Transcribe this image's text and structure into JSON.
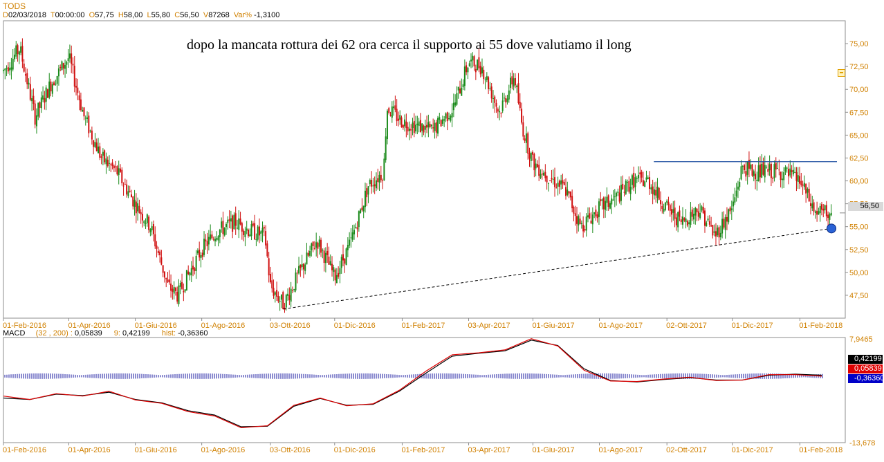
{
  "header": {
    "symbol": "TODS",
    "date_label": "D",
    "date": "02/03/2018",
    "time_label": "T",
    "time": "00:00:00",
    "open_label": "O",
    "open": "57,75",
    "high_label": "H",
    "high": "58,00",
    "low_label": "L",
    "low": "55,80",
    "close_label": "C",
    "close": "56,50",
    "volume_label": "V",
    "volume": "87268",
    "var_label": "Var%",
    "var": "-1,3100"
  },
  "annotation": "dopo la mancata rottura dei 62 ora cerca il supporto ai 55 dove valutiamo il long",
  "last_price_flag": "56,50",
  "macd_legend": {
    "name": "MACD",
    "params": "(32 , 200)",
    "macd_value": "0,05839",
    "signal_label": "9",
    "signal_value": "0,42199",
    "hist_label": "hist",
    "hist_value": "-0,36360"
  },
  "macd_flags": {
    "signal": "0,42199",
    "macd": "0,05839",
    "hist": "-0,36360"
  },
  "colors": {
    "up": "#1a8a1a",
    "down": "#d01010",
    "resistance": "#1f4fa0",
    "support": "#000000",
    "macd": "#e00000",
    "signal": "#000000",
    "hist": "#1a1aa0",
    "axis_text": "#d08000",
    "marker": "#2a62d6"
  },
  "chart_data": [
    {
      "type": "candlestick",
      "series_name": "TODS",
      "x_tick_labels": [
        "01-Feb-2016",
        "01-Apr-2016",
        "01-Giu-2016",
        "01-Ago-2016",
        "03-Ott-2016",
        "01-Dic-2016",
        "01-Feb-2017",
        "03-Apr-2017",
        "01-Giu-2017",
        "01-Ago-2017",
        "02-Ott-2017",
        "01-Dic-2017",
        "01-Feb-2018"
      ],
      "y_ticks": [
        "75,00",
        "72,50",
        "70,00",
        "67,50",
        "65,00",
        "62,50",
        "60,00",
        "57,50",
        "55,00",
        "52,50",
        "50,00",
        "47,50"
      ],
      "ylim": [
        45.0,
        77.5
      ],
      "price_path": [
        [
          "01-Feb-2016",
          72.0
        ],
        [
          "16-Feb-2016",
          74.5
        ],
        [
          "01-Mar-2016",
          67.0
        ],
        [
          "15-Mar-2016",
          70.5
        ],
        [
          "01-Apr-2016",
          73.5
        ],
        [
          "15-Apr-2016",
          67.0
        ],
        [
          "01-May-2016",
          62.5
        ],
        [
          "15-May-2016",
          61.0
        ],
        [
          "01-Jun-2016",
          57.5
        ],
        [
          "15-Jun-2016",
          55.0
        ],
        [
          "01-Jul-2016",
          48.5
        ],
        [
          "10-Jul-2016",
          47.5
        ],
        [
          "01-Aug-2016",
          52.5
        ],
        [
          "15-Aug-2016",
          54.5
        ],
        [
          "01-Sep-2016",
          55.5
        ],
        [
          "15-Sep-2016",
          54.5
        ],
        [
          "28-Sep-2016",
          54.0
        ],
        [
          "03-Oct-2016",
          48.5
        ],
        [
          "15-Oct-2016",
          46.5
        ],
        [
          "01-Nov-2016",
          50.5
        ],
        [
          "15-Nov-2016",
          53.5
        ],
        [
          "01-Dec-2016",
          49.5
        ],
        [
          "15-Dec-2016",
          53.0
        ],
        [
          "01-Jan-2017",
          59.5
        ],
        [
          "15-Jan-2017",
          61.0
        ],
        [
          "18-Jan-2017",
          68.0
        ],
        [
          "01-Feb-2017",
          66.5
        ],
        [
          "15-Feb-2017",
          66.0
        ],
        [
          "01-Mar-2017",
          65.5
        ],
        [
          "20-Mar-2017",
          68.0
        ],
        [
          "03-Apr-2017",
          73.0
        ],
        [
          "15-Apr-2017",
          72.5
        ],
        [
          "01-May-2017",
          67.5
        ],
        [
          "15-May-2017",
          71.5
        ],
        [
          "22-May-2017",
          66.0
        ],
        [
          "01-Jun-2017",
          62.0
        ],
        [
          "15-Jun-2017",
          60.5
        ],
        [
          "01-Jul-2017",
          59.0
        ],
        [
          "15-Jul-2017",
          55.0
        ],
        [
          "01-Aug-2017",
          57.0
        ],
        [
          "15-Aug-2017",
          58.0
        ],
        [
          "01-Sep-2017",
          60.0
        ],
        [
          "15-Sep-2017",
          60.0
        ],
        [
          "02-Oct-2017",
          57.0
        ],
        [
          "15-Oct-2017",
          55.5
        ],
        [
          "01-Nov-2017",
          57.0
        ],
        [
          "15-Nov-2017",
          54.0
        ],
        [
          "01-Dec-2017",
          57.0
        ],
        [
          "10-Dec-2017",
          61.5
        ],
        [
          "20-Dec-2017",
          61.0
        ],
        [
          "01-Jan-2018",
          61.0
        ],
        [
          "15-Jan-2018",
          61.0
        ],
        [
          "01-Feb-2018",
          60.0
        ],
        [
          "15-Feb-2018",
          56.5
        ]
      ],
      "last_close": 56.5,
      "annotations": [
        {
          "type": "horizontal-line",
          "label": "resistance",
          "y": 62.1,
          "x_from": "20-Sep-2017",
          "x_to": "02-Mar-2018"
        },
        {
          "type": "trend-line",
          "label": "support",
          "from": [
            "15-Oct-2016",
            46.0
          ],
          "to": [
            "02-Mar-2018",
            54.8
          ]
        },
        {
          "type": "marker",
          "at": [
            "02-Mar-2018",
            54.8
          ]
        }
      ]
    },
    {
      "type": "line",
      "name": "MACD",
      "x_tick_labels": [
        "01-Feb-2016",
        "01-Apr-2016",
        "01-Giu-2016",
        "01-Ago-2016",
        "03-Ott-2016",
        "01-Dic-2016",
        "01-Feb-2017",
        "03-Apr-2017",
        "01-Giu-2017",
        "01-Ago-2017",
        "02-Ott-2017",
        "01-Dic-2017",
        "01-Feb-2018"
      ],
      "y_ticks": [
        "7,9465",
        "-13,678"
      ],
      "ylim": [
        -13.678,
        7.9465
      ],
      "series": [
        {
          "name": "MACD",
          "values": [
            -4.1,
            -4.8,
            -3.6,
            -4.1,
            -3.1,
            -4.9,
            -5.6,
            -7.3,
            -8.2,
            -10.6,
            -10.2,
            -6.0,
            -4.5,
            -6.1,
            -5.7,
            -2.9,
            1.0,
            4.4,
            4.8,
            5.4,
            7.7,
            6.2,
            1.2,
            -1.0,
            -1.1,
            -0.6,
            -0.2,
            -0.9,
            -0.8,
            0.3,
            0.3,
            0.0
          ]
        },
        {
          "name": "9",
          "values": [
            -4.5,
            -4.8,
            -3.7,
            -4.0,
            -3.3,
            -4.8,
            -5.5,
            -7.1,
            -8.0,
            -10.4,
            -10.3,
            -6.2,
            -4.6,
            -6.0,
            -5.8,
            -3.1,
            0.6,
            4.1,
            4.7,
            5.2,
            7.4,
            6.3,
            1.5,
            -0.9,
            -1.2,
            -0.7,
            -0.3,
            -0.8,
            -0.8,
            0.2,
            0.4,
            0.2
          ]
        }
      ],
      "hist_level": 0.0
    }
  ]
}
